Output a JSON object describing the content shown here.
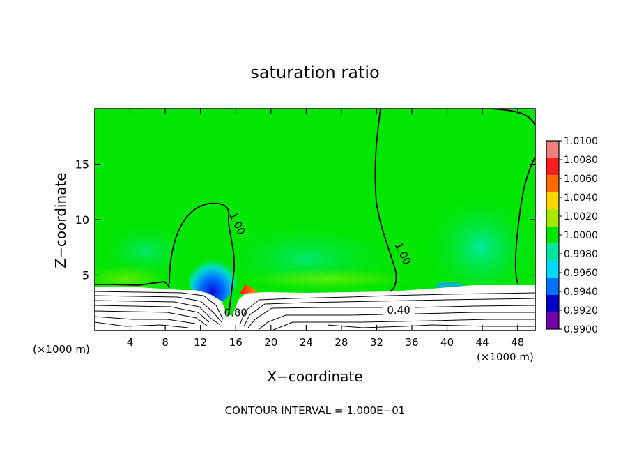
{
  "chart_data": {
    "type": "contour",
    "title": "saturation ratio",
    "xlabel": "X−coordinate",
    "ylabel": "Z−coordinate",
    "x_unit_left": "(×1000 m)",
    "x_unit_right": "(×1000 m)",
    "xlim": [
      0,
      50
    ],
    "ylim": [
      0,
      20
    ],
    "x_ticks": [
      4,
      8,
      12,
      16,
      20,
      24,
      28,
      32,
      36,
      40,
      44,
      48
    ],
    "y_ticks": [
      5,
      10,
      15
    ],
    "footer": "CONTOUR INTERVAL = 1.000E−01",
    "contour_labels": [
      {
        "text": "1.00",
        "x": 15.8,
        "y": 9.5
      },
      {
        "text": "1.00",
        "x": 34.6,
        "y": 6.8
      },
      {
        "text": "0.40",
        "x": 34.5,
        "y": 1.5
      },
      {
        "text": "0.80",
        "x": 16.0,
        "y": 1.3
      }
    ],
    "colorbar": {
      "levels": [
        "1.0100",
        "1.0080",
        "1.0060",
        "1.0040",
        "1.0020",
        "1.0000",
        "0.9980",
        "0.9960",
        "0.9940",
        "0.9920",
        "0.9900"
      ],
      "colors": [
        "#f08080",
        "#ff1e1e",
        "#ff6a00",
        "#ffd700",
        "#a8e800",
        "#00e600",
        "#00e6a0",
        "#00d8ff",
        "#0070ff",
        "#0000c8",
        "#7000a8"
      ]
    }
  }
}
